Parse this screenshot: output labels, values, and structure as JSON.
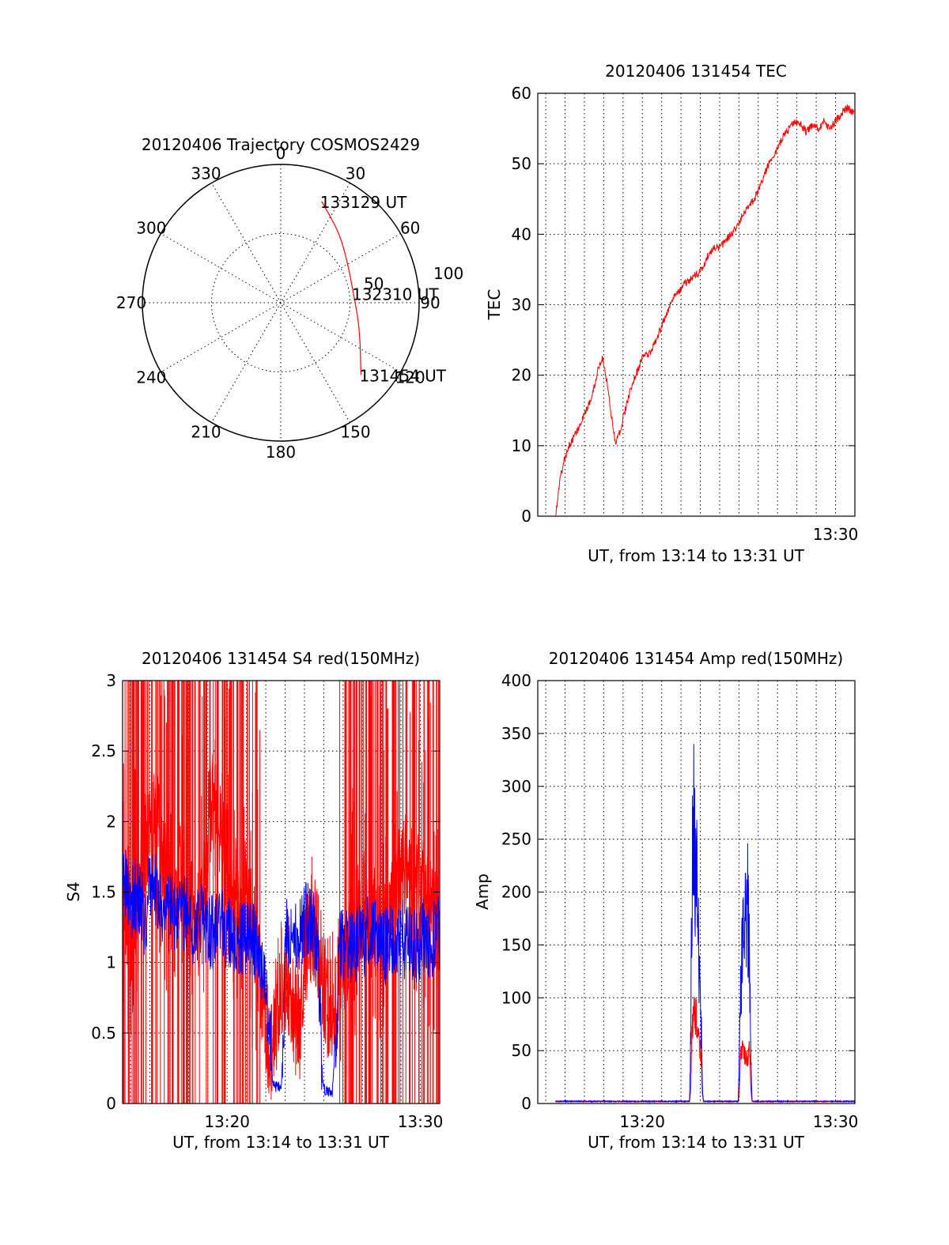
{
  "chart_data": [
    {
      "type": "polar",
      "title": "20120406 Trajectory COSMOS2429",
      "angle_labels": [
        "0",
        "30",
        "60",
        "90",
        "120",
        "150",
        "180",
        "210",
        "240",
        "270",
        "300",
        "330"
      ],
      "radius_labels": [
        "50",
        "100"
      ],
      "trajectory": {
        "color": "#ff0000",
        "points": [
          {
            "az": 22,
            "r": 79,
            "label": "133129 UT"
          },
          {
            "az": 40,
            "r": 66
          },
          {
            "az": 60,
            "r": 56
          },
          {
            "az": 83,
            "r": 53,
            "label": "132310 UT"
          },
          {
            "az": 108,
            "r": 60
          },
          {
            "az": 132,
            "r": 78,
            "label": "131454 UT"
          }
        ]
      }
    },
    {
      "type": "line",
      "title": "20120406 131454 TEC",
      "xlabel": "UT, from 13:14 to 13:31 UT",
      "ylabel": "TEC",
      "xlim": [
        13.2431,
        13.5167
      ],
      "ylim": [
        0,
        60
      ],
      "xticks": [
        {
          "value": 13.5,
          "label": "13:30"
        }
      ],
      "yticks": [
        0,
        10,
        20,
        30,
        40,
        50,
        60
      ],
      "grid": true,
      "series": [
        {
          "color": "#ff0000",
          "points": [
            [
              13.2585,
              0
            ],
            [
              13.262,
              5
            ],
            [
              13.266,
              8
            ],
            [
              13.27,
              10
            ],
            [
              13.275,
              11.5
            ],
            [
              13.28,
              13
            ],
            [
              13.285,
              15
            ],
            [
              13.29,
              17
            ],
            [
              13.295,
              21
            ],
            [
              13.299,
              22.5
            ],
            [
              13.303,
              19
            ],
            [
              13.306,
              15
            ],
            [
              13.31,
              10.5
            ],
            [
              13.314,
              12
            ],
            [
              13.32,
              16
            ],
            [
              13.325,
              19
            ],
            [
              13.33,
              21
            ],
            [
              13.335,
              23
            ],
            [
              13.34,
              23
            ],
            [
              13.345,
              25
            ],
            [
              13.35,
              27
            ],
            [
              13.355,
              29
            ],
            [
              13.36,
              31
            ],
            [
              13.365,
              32
            ],
            [
              13.37,
              33
            ],
            [
              13.378,
              34
            ],
            [
              13.385,
              35
            ],
            [
              13.39,
              37
            ],
            [
              13.395,
              38
            ],
            [
              13.4,
              38
            ],
            [
              13.41,
              40
            ],
            [
              13.415,
              41
            ],
            [
              13.42,
              43
            ],
            [
              13.425,
              44
            ],
            [
              13.43,
              45
            ],
            [
              13.435,
              47
            ],
            [
              13.44,
              49
            ],
            [
              13.445,
              51
            ],
            [
              13.45,
              52
            ],
            [
              13.455,
              54
            ],
            [
              13.46,
              55
            ],
            [
              13.465,
              56
            ],
            [
              13.47,
              55.5
            ],
            [
              13.475,
              54.5
            ],
            [
              13.48,
              55.5
            ],
            [
              13.485,
              55
            ],
            [
              13.49,
              56
            ],
            [
              13.495,
              55
            ],
            [
              13.5,
              56
            ],
            [
              13.505,
              57
            ],
            [
              13.51,
              58
            ],
            [
              13.5167,
              57
            ]
          ]
        }
      ]
    },
    {
      "type": "line",
      "title": "20120406 131454 S4 red(150MHz)",
      "xlabel": "UT, from 13:14 to 13:31 UT",
      "ylabel": "S4",
      "xlim": [
        13.2431,
        13.5167
      ],
      "ylim": [
        0,
        3
      ],
      "xticks": [
        {
          "value": 13.3333,
          "label": "13:20"
        },
        {
          "value": 13.5,
          "label": "13:30"
        }
      ],
      "yticks": [
        0,
        0.5,
        1,
        1.5,
        2,
        2.5,
        3
      ],
      "grid": true,
      "series": [
        {
          "color": "#ff0000",
          "points": [
            [
              13.2431,
              1.6
            ],
            [
              13.2515,
              1.1
            ],
            [
              13.26,
              1.8
            ],
            [
              13.268,
              2
            ],
            [
              13.276,
              1.9
            ],
            [
              13.284,
              1.5
            ],
            [
              13.292,
              1.7
            ],
            [
              13.3,
              1.4
            ],
            [
              13.31,
              1.3
            ],
            [
              13.32,
              2.2
            ],
            [
              13.33,
              1.8
            ],
            [
              13.34,
              1.6
            ],
            [
              13.35,
              1.5
            ],
            [
              13.355,
              1.3
            ],
            [
              13.36,
              1.0
            ],
            [
              13.364,
              0.75
            ],
            [
              13.368,
              0.5
            ],
            [
              13.372,
              0.4
            ],
            [
              13.376,
              0.6
            ],
            [
              13.38,
              0.8
            ],
            [
              13.384,
              0.9
            ],
            [
              13.388,
              0.75
            ],
            [
              13.392,
              0.6
            ],
            [
              13.396,
              0.55
            ],
            [
              13.4,
              1.0
            ],
            [
              13.405,
              1.25
            ],
            [
              13.41,
              1.2
            ],
            [
              13.414,
              1.0
            ],
            [
              13.418,
              0.8
            ],
            [
              13.42,
              0.7
            ],
            [
              13.425,
              0.7
            ],
            [
              13.43,
              0.8
            ],
            [
              13.435,
              1.0
            ],
            [
              13.44,
              1.2
            ],
            [
              13.45,
              1.4
            ],
            [
              13.46,
              1.3
            ],
            [
              13.47,
              1.2
            ],
            [
              13.48,
              1.6
            ],
            [
              13.49,
              1.7
            ],
            [
              13.5,
              1.5
            ],
            [
              13.5167,
              1.3
            ]
          ]
        },
        {
          "color": "#0000ff",
          "points": [
            [
              13.2431,
              1.6
            ],
            [
              13.25,
              1.4
            ],
            [
              13.256,
              1.5
            ],
            [
              13.262,
              1.3
            ],
            [
              13.268,
              1.6
            ],
            [
              13.274,
              1.4
            ],
            [
              13.28,
              1.3
            ],
            [
              13.286,
              1.4
            ],
            [
              13.292,
              1.3
            ],
            [
              13.298,
              1.35
            ],
            [
              13.305,
              1.25
            ],
            [
              13.312,
              1.3
            ],
            [
              13.32,
              1.2
            ],
            [
              13.328,
              1.25
            ],
            [
              13.336,
              1.2
            ],
            [
              13.344,
              1.15
            ],
            [
              13.352,
              1.2
            ],
            [
              13.358,
              1.15
            ],
            [
              13.362,
              1.0
            ],
            [
              13.366,
              0.8
            ],
            [
              13.37,
              0.5
            ],
            [
              13.372,
              0.2
            ],
            [
              13.374,
              0.12
            ],
            [
              13.38,
              0.12
            ],
            [
              13.382,
              0.5
            ],
            [
              13.384,
              1.2
            ],
            [
              13.39,
              1.25
            ],
            [
              13.396,
              1.2
            ],
            [
              13.402,
              1.3
            ],
            [
              13.408,
              1.25
            ],
            [
              13.412,
              1.0
            ],
            [
              13.414,
              0.5
            ],
            [
              13.416,
              0.12
            ],
            [
              13.418,
              0.08
            ],
            [
              13.424,
              0.08
            ],
            [
              13.426,
              0.3
            ],
            [
              13.428,
              0.6
            ],
            [
              13.43,
              1.1
            ],
            [
              13.436,
              1.15
            ],
            [
              13.442,
              1.1
            ],
            [
              13.448,
              1.15
            ],
            [
              13.456,
              1.2
            ],
            [
              13.464,
              1.15
            ],
            [
              13.472,
              1.1
            ],
            [
              13.48,
              1.2
            ],
            [
              13.488,
              1.15
            ],
            [
              13.496,
              1.1
            ],
            [
              13.504,
              1.2
            ],
            [
              13.51,
              1.15
            ],
            [
              13.5167,
              1.2
            ]
          ]
        }
      ]
    },
    {
      "type": "line",
      "title": "20120406 131454 Amp red(150MHz)",
      "xlabel": "UT, from 13:14 to 13:31 UT",
      "ylabel": "Amp",
      "xlim": [
        13.2431,
        13.5167
      ],
      "ylim": [
        0,
        400
      ],
      "xticks": [
        {
          "value": 13.3333,
          "label": "13:20"
        },
        {
          "value": 13.5,
          "label": "13:30"
        }
      ],
      "yticks": [
        0,
        50,
        100,
        150,
        200,
        250,
        300,
        350,
        400
      ],
      "grid": true,
      "series": [
        {
          "color": "#ff0000",
          "points": [
            [
              13.2585,
              2
            ],
            [
              13.374,
              2
            ],
            [
              13.375,
              10
            ],
            [
              13.376,
              70
            ],
            [
              13.378,
              95
            ],
            [
              13.38,
              80
            ],
            [
              13.382,
              60
            ],
            [
              13.384,
              45
            ],
            [
              13.385,
              10
            ],
            [
              13.386,
              2
            ],
            [
              13.416,
              2
            ],
            [
              13.417,
              10
            ],
            [
              13.418,
              45
            ],
            [
              13.42,
              55
            ],
            [
              13.422,
              45
            ],
            [
              13.424,
              40
            ],
            [
              13.426,
              50
            ],
            [
              13.427,
              10
            ],
            [
              13.428,
              2
            ],
            [
              13.5167,
              2
            ]
          ]
        },
        {
          "color": "#0000ff",
          "points": [
            [
              13.2585,
              2
            ],
            [
              13.374,
              2
            ],
            [
              13.375,
              60
            ],
            [
              13.376,
              200
            ],
            [
              13.377,
              240
            ],
            [
              13.378,
              260
            ],
            [
              13.379,
              235
            ],
            [
              13.38,
              210
            ],
            [
              13.381,
              180
            ],
            [
              13.382,
              150
            ],
            [
              13.383,
              120
            ],
            [
              13.384,
              80
            ],
            [
              13.385,
              20
            ],
            [
              13.386,
              2
            ],
            [
              13.416,
              2
            ],
            [
              13.417,
              40
            ],
            [
              13.418,
              110
            ],
            [
              13.42,
              150
            ],
            [
              13.422,
              175
            ],
            [
              13.424,
              200
            ],
            [
              13.425,
              160
            ],
            [
              13.426,
              130
            ],
            [
              13.427,
              40
            ],
            [
              13.428,
              2
            ],
            [
              13.5167,
              2
            ]
          ]
        }
      ]
    }
  ]
}
